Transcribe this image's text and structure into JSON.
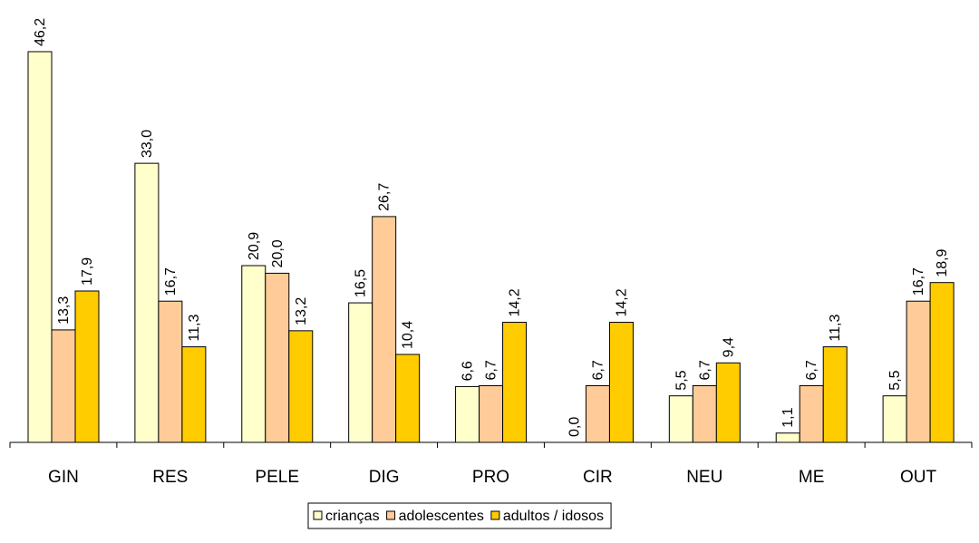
{
  "chart_data": {
    "type": "bar",
    "categories": [
      "GIN",
      "RES",
      "PELE",
      "DIG",
      "PRO",
      "CIR",
      "NEU",
      "ME",
      "OUT"
    ],
    "series": [
      {
        "name": "crianças",
        "color": "#FFFFCC",
        "values": [
          46.2,
          33.0,
          20.9,
          16.5,
          6.6,
          0.0,
          5.5,
          1.1,
          5.5
        ],
        "labels": [
          "46,2",
          "33,0",
          "20,9",
          "16,5",
          "6,6",
          "0,0",
          "5,5",
          "1,1",
          "5,5"
        ]
      },
      {
        "name": "adolescentes",
        "color": "#FFCC99",
        "values": [
          13.3,
          16.7,
          20.0,
          26.7,
          6.7,
          6.7,
          6.7,
          6.7,
          16.7
        ],
        "labels": [
          "13,3",
          "16,7",
          "20,0",
          "26,7",
          "6,7",
          "6,7",
          "6,7",
          "6,7",
          "16,7"
        ]
      },
      {
        "name": "adultos / idosos",
        "color": "#FFCC00",
        "values": [
          17.9,
          11.3,
          13.2,
          10.4,
          14.2,
          14.2,
          9.4,
          11.3,
          18.9
        ],
        "labels": [
          "17,9",
          "11,3",
          "13,2",
          "10,4",
          "14,2",
          "14,2",
          "9,4",
          "11,3",
          "18,9"
        ]
      }
    ],
    "title": "",
    "xlabel": "",
    "ylabel": "",
    "ylim": [
      0,
      46.2
    ],
    "grid": false,
    "legend": "bottom"
  }
}
